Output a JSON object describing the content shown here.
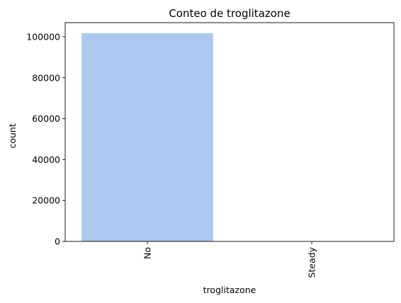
{
  "chart_data": {
    "type": "bar",
    "title": "Conteo de troglitazone",
    "xlabel": "troglitazone",
    "ylabel": "count",
    "categories": [
      "No",
      "Steady"
    ],
    "values": [
      101763,
      3
    ],
    "ylim": [
      0,
      106900
    ],
    "yticks": [
      0,
      20000,
      40000,
      60000,
      80000,
      100000
    ],
    "ytick_labels": [
      "0",
      "20000",
      "40000",
      "60000",
      "80000",
      "100000"
    ],
    "xtick_rotation": "vertical",
    "bar_color": "#abc9ee",
    "grid": false,
    "legend": "none"
  }
}
